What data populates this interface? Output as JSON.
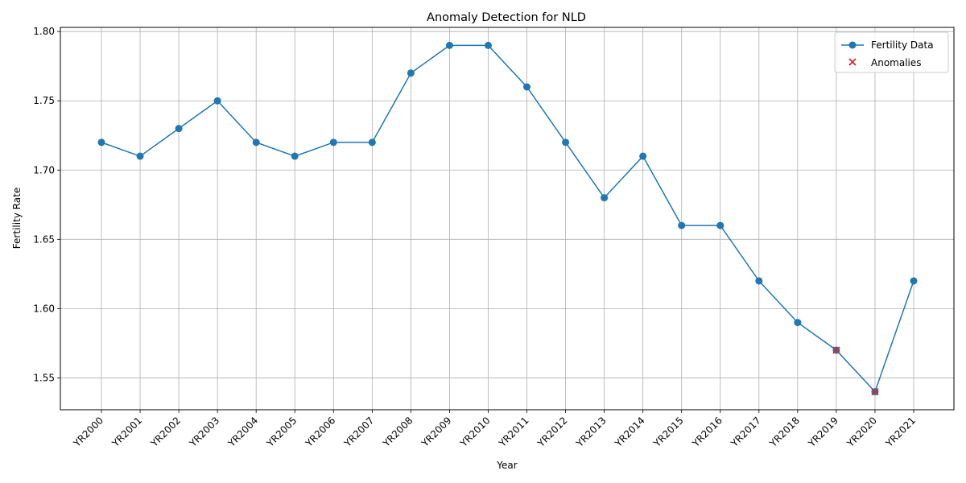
{
  "chart_data": {
    "type": "line",
    "title": "Anomaly Detection for NLD",
    "xlabel": "Year",
    "ylabel": "Fertility Rate",
    "categories": [
      "YR2000",
      "YR2001",
      "YR2002",
      "YR2003",
      "YR2004",
      "YR2005",
      "YR2006",
      "YR2007",
      "YR2008",
      "YR2009",
      "YR2010",
      "YR2011",
      "YR2012",
      "YR2013",
      "YR2014",
      "YR2015",
      "YR2016",
      "YR2017",
      "YR2018",
      "YR2019",
      "YR2020",
      "YR2021"
    ],
    "series": [
      {
        "name": "Fertility Data",
        "values": [
          1.72,
          1.71,
          1.73,
          1.75,
          1.72,
          1.71,
          1.72,
          1.72,
          1.77,
          1.79,
          1.79,
          1.76,
          1.72,
          1.68,
          1.71,
          1.66,
          1.66,
          1.62,
          1.59,
          1.57,
          1.54,
          1.62
        ],
        "color": "#1f77b4",
        "marker": "circle"
      },
      {
        "name": "Anomalies",
        "type": "scatter",
        "marker": "x",
        "color": "#d62728",
        "points": [
          {
            "x": "YR2019",
            "y": 1.57
          },
          {
            "x": "YR2020",
            "y": 1.54
          }
        ]
      }
    ],
    "yticks": [
      "1.55",
      "1.60",
      "1.65",
      "1.70",
      "1.75",
      "1.80"
    ],
    "ylim": [
      1.527,
      1.803
    ],
    "grid": true,
    "legend": "top-right"
  }
}
